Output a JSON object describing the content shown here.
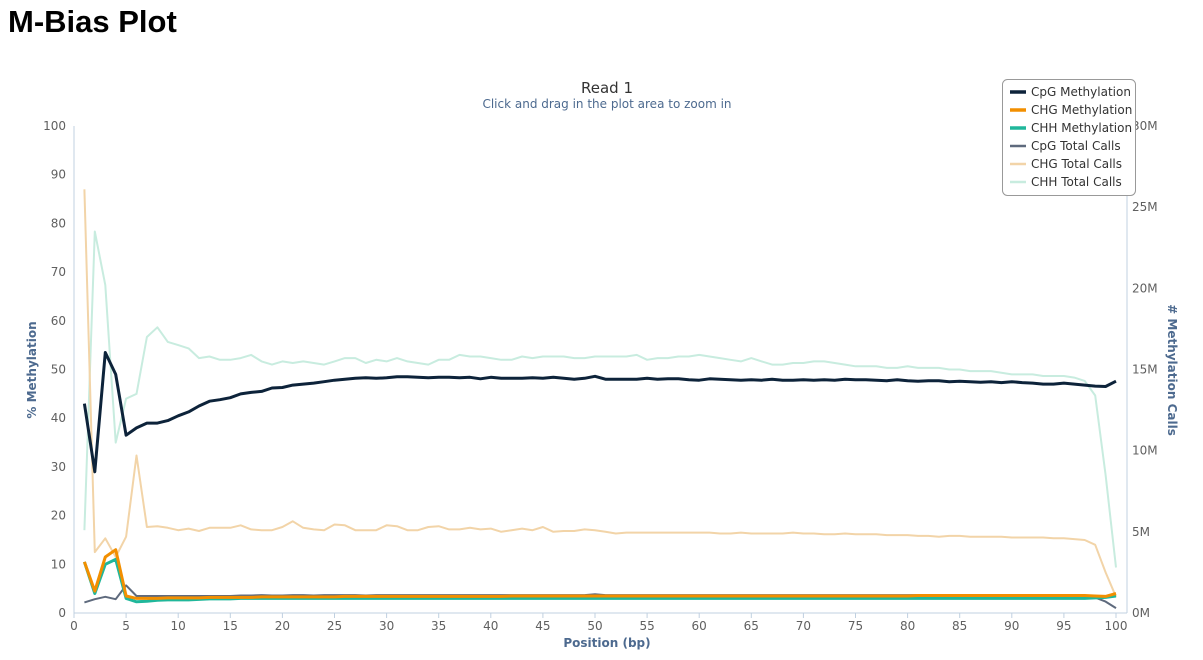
{
  "page_title": "M-Bias Plot",
  "chart_data": {
    "type": "line",
    "title": "Read 1",
    "subtitle": "Click and drag in the plot area to zoom in",
    "xlabel": "Position (bp)",
    "ylabel": "% Methylation",
    "y2label": "# Methylation Calls",
    "xlim": [
      0,
      100
    ],
    "ylim": [
      0,
      100
    ],
    "y2lim": [
      0,
      30
    ],
    "xticks": [
      "0",
      "5",
      "10",
      "15",
      "20",
      "25",
      "30",
      "35",
      "40",
      "45",
      "50",
      "55",
      "60",
      "65",
      "70",
      "75",
      "80",
      "85",
      "90",
      "95",
      "100"
    ],
    "yticks": [
      "0",
      "10",
      "20",
      "30",
      "40",
      "50",
      "60",
      "70",
      "80",
      "90",
      "100"
    ],
    "y2ticks": [
      "0M",
      "5M",
      "10M",
      "15M",
      "20M",
      "25M",
      "30M"
    ],
    "grid": false,
    "legend_placement": "top-right",
    "x_start": 1,
    "series": [
      {
        "name": "CpG Methylation",
        "axis": "left",
        "color": "#0d233a",
        "width": 3,
        "values": [
          43,
          29,
          53.5,
          49,
          36.5,
          38,
          39,
          39,
          39.5,
          40.5,
          41.3,
          42.5,
          43.5,
          43.8,
          44.2,
          45,
          45.3,
          45.5,
          46.2,
          46.3,
          46.8,
          47,
          47.2,
          47.5,
          47.8,
          48,
          48.2,
          48.3,
          48.2,
          48.3,
          48.5,
          48.5,
          48.4,
          48.3,
          48.4,
          48.4,
          48.3,
          48.4,
          48.1,
          48.4,
          48.2,
          48.2,
          48.2,
          48.3,
          48.2,
          48.4,
          48.2,
          48,
          48.2,
          48.6,
          48,
          48,
          48,
          48,
          48.2,
          48,
          48.1,
          48.1,
          47.9,
          47.8,
          48.1,
          48,
          47.9,
          47.8,
          47.9,
          47.8,
          48,
          47.8,
          47.8,
          47.9,
          47.8,
          47.9,
          47.8,
          48,
          47.9,
          47.9,
          47.8,
          47.7,
          47.9,
          47.7,
          47.6,
          47.7,
          47.7,
          47.5,
          47.6,
          47.5,
          47.4,
          47.5,
          47.3,
          47.5,
          47.3,
          47.2,
          47,
          47,
          47.2,
          47,
          46.8,
          46.6,
          46.5,
          47.6
        ]
      },
      {
        "name": "CHG Methylation",
        "axis": "left",
        "color": "#f28f00",
        "width": 3,
        "values": [
          10.5,
          4.5,
          11.5,
          13,
          3.5,
          3,
          3,
          3,
          3.1,
          3.1,
          3.1,
          3.1,
          3.2,
          3.2,
          3.2,
          3.2,
          3.2,
          3.3,
          3.3,
          3.3,
          3.3,
          3.3,
          3.3,
          3.3,
          3.3,
          3.4,
          3.4,
          3.4,
          3.4,
          3.4,
          3.4,
          3.4,
          3.4,
          3.4,
          3.4,
          3.4,
          3.4,
          3.4,
          3.4,
          3.4,
          3.4,
          3.5,
          3.5,
          3.5,
          3.5,
          3.5,
          3.5,
          3.5,
          3.5,
          3.5,
          3.5,
          3.5,
          3.5,
          3.5,
          3.5,
          3.5,
          3.5,
          3.5,
          3.5,
          3.5,
          3.5,
          3.5,
          3.5,
          3.5,
          3.5,
          3.5,
          3.5,
          3.5,
          3.5,
          3.5,
          3.5,
          3.5,
          3.5,
          3.5,
          3.5,
          3.5,
          3.5,
          3.5,
          3.5,
          3.5,
          3.6,
          3.6,
          3.6,
          3.6,
          3.6,
          3.6,
          3.6,
          3.6,
          3.6,
          3.6,
          3.6,
          3.6,
          3.6,
          3.6,
          3.6,
          3.6,
          3.6,
          3.5,
          3.4,
          4
        ]
      },
      {
        "name": "CHH Methylation",
        "axis": "left",
        "color": "#1aadce",
        "strokeColor": "#20b79b",
        "width": 3,
        "values": [
          10.5,
          4,
          10,
          11,
          3,
          2.3,
          2.4,
          2.6,
          2.7,
          2.7,
          2.7,
          2.8,
          2.9,
          2.9,
          2.9,
          3,
          3,
          3,
          3,
          3,
          3,
          3,
          3,
          3,
          3,
          3,
          3,
          3,
          3,
          3,
          3,
          3,
          3,
          3,
          3,
          3,
          3,
          3,
          3,
          3,
          3,
          3,
          3,
          3,
          3,
          3,
          3,
          3,
          3,
          3,
          3,
          3,
          3,
          3,
          3,
          3,
          3,
          3,
          3,
          3,
          3,
          3,
          3,
          3,
          3,
          3,
          3,
          3,
          3,
          3,
          3,
          3,
          3,
          3,
          3,
          3,
          3,
          3,
          3,
          3,
          3,
          3,
          3,
          3,
          3,
          3,
          3,
          3,
          3,
          3,
          3,
          3,
          3,
          3,
          3,
          3,
          3,
          3.1,
          3.2,
          3.5
        ]
      },
      {
        "name": "CpG Total Calls",
        "axis": "right",
        "color": "#5e6a7d",
        "width": 2,
        "values": [
          0.65,
          0.85,
          1.0,
          0.85,
          1.7,
          1.05,
          1.05,
          1.05,
          1.05,
          1.05,
          1.05,
          1.05,
          1.05,
          1.05,
          1.05,
          1.08,
          1.08,
          1.1,
          1.08,
          1.08,
          1.1,
          1.1,
          1.08,
          1.1,
          1.1,
          1.1,
          1.1,
          1.08,
          1.1,
          1.1,
          1.1,
          1.1,
          1.1,
          1.1,
          1.1,
          1.1,
          1.1,
          1.1,
          1.1,
          1.1,
          1.1,
          1.1,
          1.1,
          1.1,
          1.1,
          1.1,
          1.1,
          1.1,
          1.1,
          1.15,
          1.1,
          1.1,
          1.1,
          1.1,
          1.1,
          1.1,
          1.1,
          1.1,
          1.1,
          1.1,
          1.1,
          1.1,
          1.1,
          1.1,
          1.1,
          1.1,
          1.1,
          1.1,
          1.1,
          1.1,
          1.1,
          1.1,
          1.1,
          1.1,
          1.1,
          1.1,
          1.1,
          1.1,
          1.1,
          1.1,
          1.1,
          1.1,
          1.1,
          1.1,
          1.1,
          1.1,
          1.1,
          1.1,
          1.1,
          1.1,
          1.1,
          1.1,
          1.05,
          1.05,
          1.05,
          1.05,
          1.0,
          0.95,
          0.7,
          0.3
        ]
      },
      {
        "name": "CHG Total Calls",
        "axis": "right",
        "color": "#f2d4a8",
        "width": 2,
        "values": [
          26.1,
          3.75,
          4.6,
          3.45,
          4.7,
          9.7,
          5.3,
          5.35,
          5.25,
          5.1,
          5.2,
          5.05,
          5.25,
          5.25,
          5.25,
          5.4,
          5.15,
          5.1,
          5.1,
          5.3,
          5.65,
          5.25,
          5.15,
          5.1,
          5.45,
          5.4,
          5.1,
          5.1,
          5.1,
          5.4,
          5.35,
          5.1,
          5.1,
          5.3,
          5.35,
          5.15,
          5.15,
          5.25,
          5.15,
          5.2,
          5.0,
          5.1,
          5.2,
          5.1,
          5.3,
          5.0,
          5.05,
          5.05,
          5.15,
          5.1,
          5.0,
          4.9,
          4.95,
          4.95,
          4.95,
          4.95,
          4.95,
          4.95,
          4.95,
          4.95,
          4.95,
          4.9,
          4.9,
          4.95,
          4.9,
          4.9,
          4.9,
          4.9,
          4.95,
          4.9,
          4.9,
          4.85,
          4.85,
          4.9,
          4.85,
          4.85,
          4.85,
          4.8,
          4.8,
          4.8,
          4.75,
          4.75,
          4.7,
          4.75,
          4.75,
          4.7,
          4.7,
          4.7,
          4.7,
          4.65,
          4.65,
          4.65,
          4.65,
          4.6,
          4.6,
          4.55,
          4.5,
          4.2,
          2.5,
          1.0
        ]
      },
      {
        "name": "CHH Total Calls",
        "axis": "right",
        "color": "#c8ecdf",
        "width": 2,
        "values": [
          5.1,
          23.5,
          20.2,
          10.5,
          13.2,
          13.5,
          17,
          17.6,
          16.7,
          16.5,
          16.3,
          15.7,
          15.8,
          15.6,
          15.6,
          15.7,
          15.9,
          15.5,
          15.3,
          15.5,
          15.4,
          15.5,
          15.4,
          15.3,
          15.5,
          15.7,
          15.7,
          15.4,
          15.6,
          15.5,
          15.7,
          15.5,
          15.4,
          15.3,
          15.6,
          15.6,
          15.9,
          15.8,
          15.8,
          15.7,
          15.6,
          15.6,
          15.8,
          15.7,
          15.8,
          15.8,
          15.8,
          15.7,
          15.7,
          15.8,
          15.8,
          15.8,
          15.8,
          15.9,
          15.6,
          15.7,
          15.7,
          15.8,
          15.8,
          15.9,
          15.8,
          15.7,
          15.6,
          15.5,
          15.7,
          15.5,
          15.3,
          15.3,
          15.4,
          15.4,
          15.5,
          15.5,
          15.4,
          15.3,
          15.2,
          15.2,
          15.2,
          15.1,
          15.1,
          15.2,
          15.1,
          15.1,
          15.1,
          15.0,
          15.0,
          14.9,
          14.9,
          14.9,
          14.8,
          14.7,
          14.7,
          14.7,
          14.6,
          14.6,
          14.6,
          14.5,
          14.3,
          13.4,
          8.5,
          2.8
        ]
      }
    ]
  }
}
